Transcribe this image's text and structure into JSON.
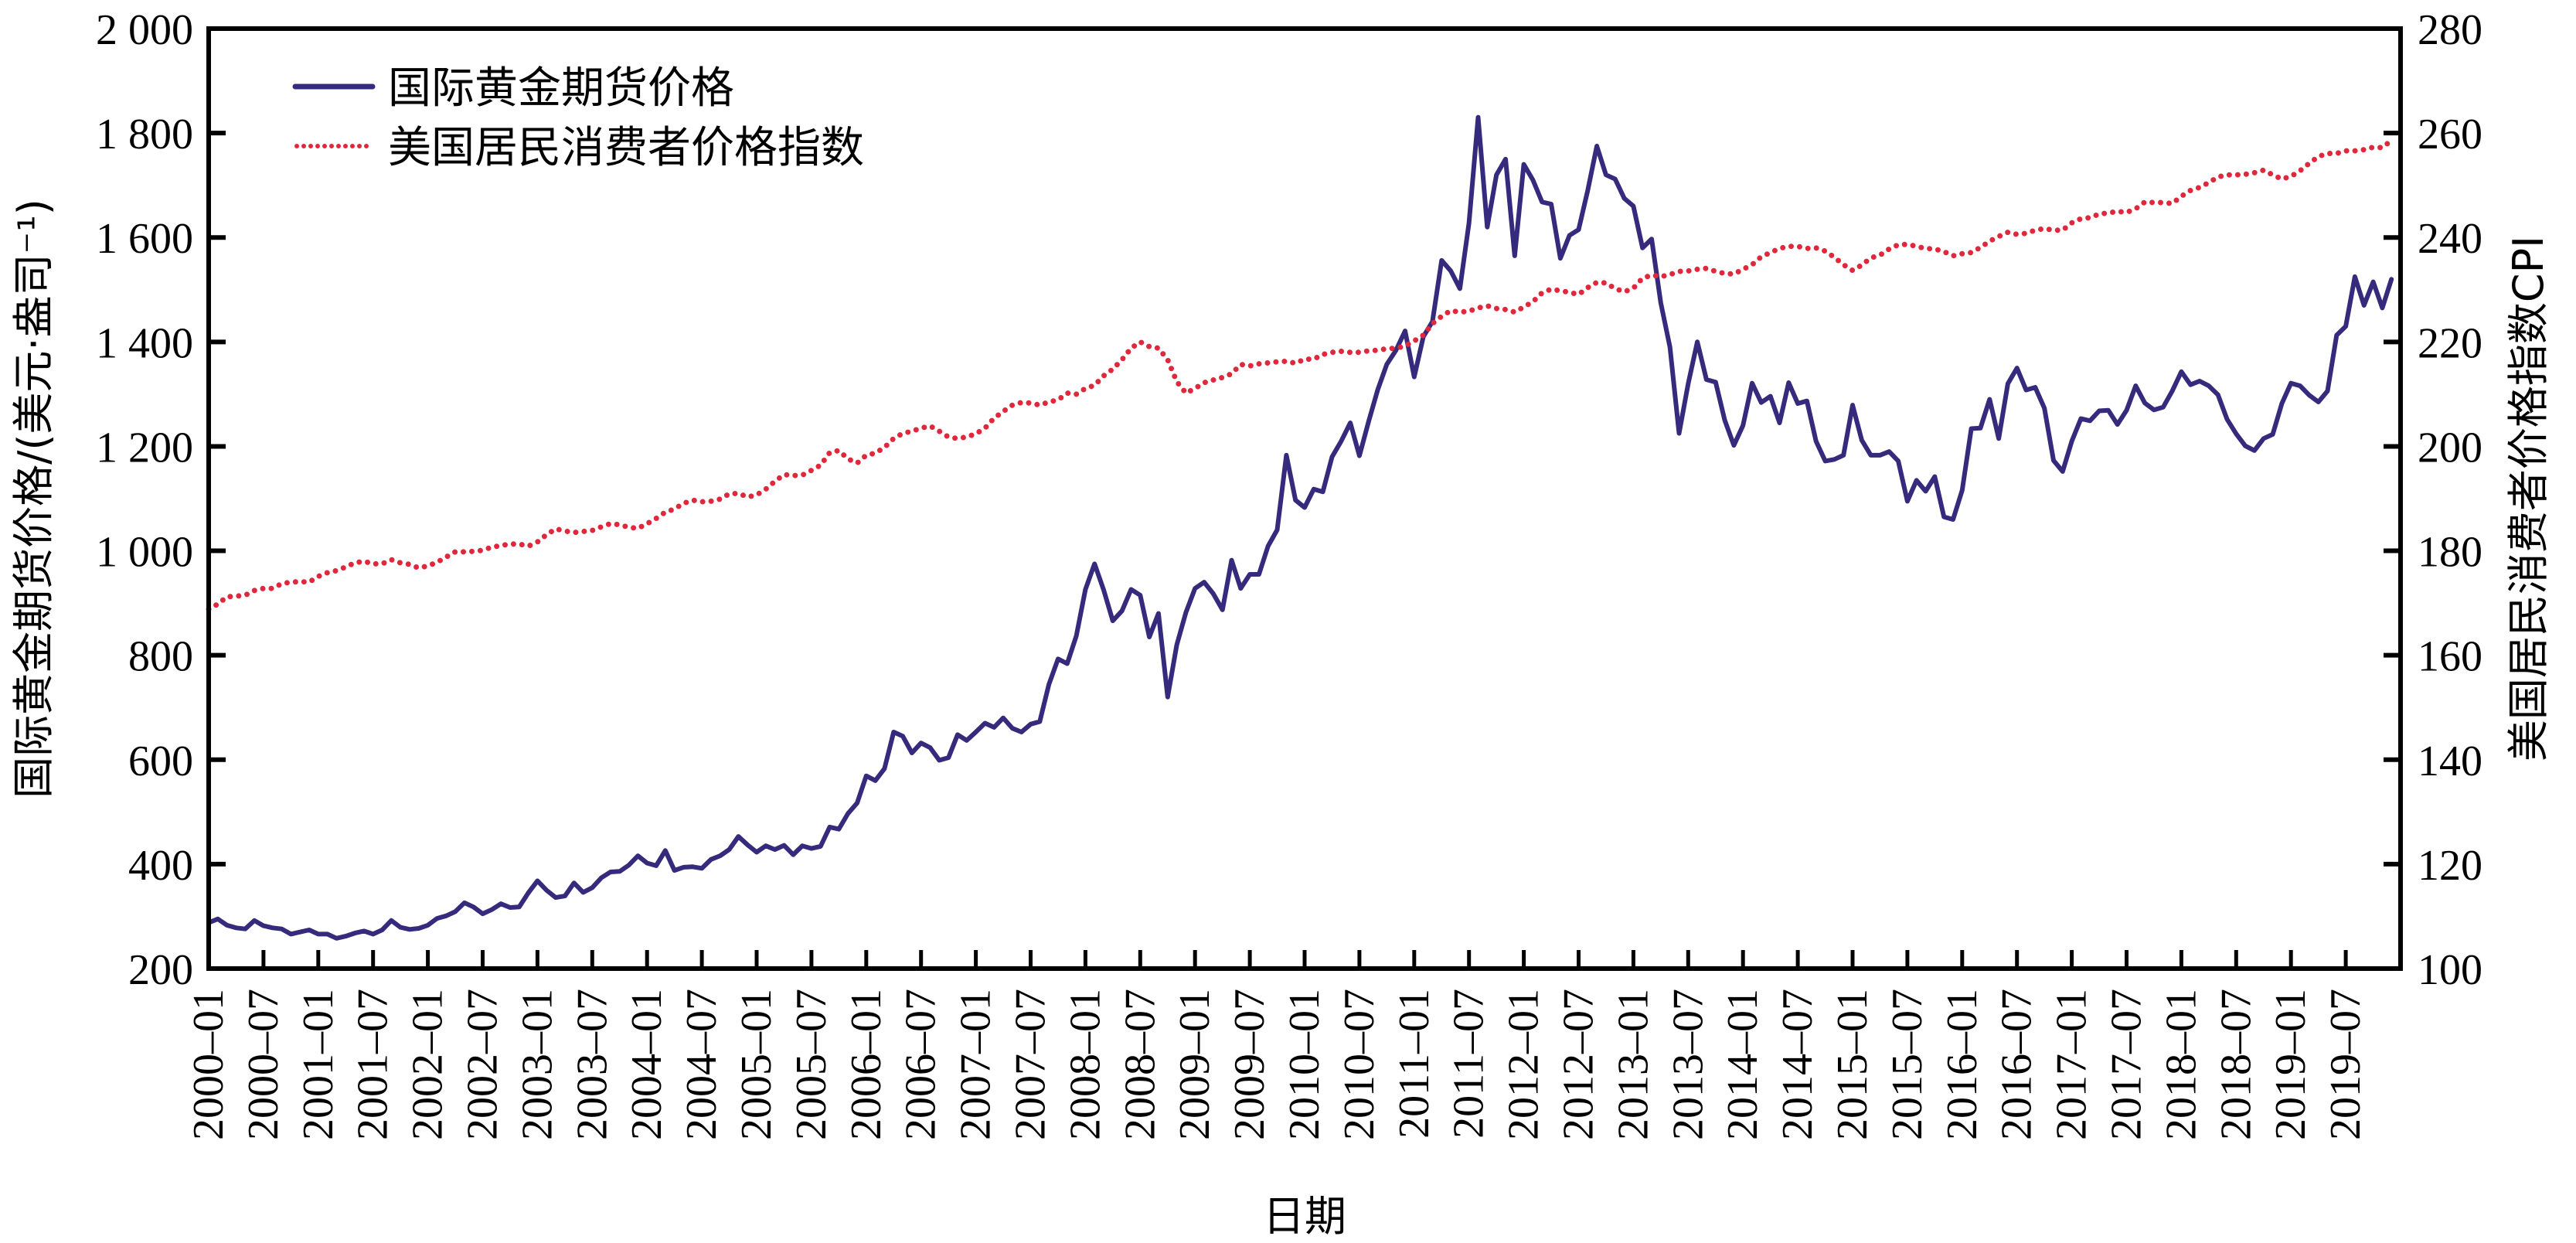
{
  "chart_data": {
    "type": "line",
    "title": "",
    "xlabel": "日期",
    "ylabel": "国际黄金期货价格/(美元·盎司⁻¹)",
    "ylabel_right": "美国居民消费者价格指数CPI",
    "ylim": [
      200,
      2000
    ],
    "ylim_right": [
      100,
      280
    ],
    "yticks": [
      "200",
      "400",
      "600",
      "800",
      "1 000",
      "1 200",
      "1 400",
      "1 600",
      "1 800",
      "2 000"
    ],
    "yticks_right": [
      "100",
      "120",
      "140",
      "160",
      "180",
      "200",
      "220",
      "240",
      "260",
      "280"
    ],
    "x_start": "2000-01",
    "x_range_months": 240,
    "xticks": [
      "2000–01",
      "2000–07",
      "2001–01",
      "2001–07",
      "2002–01",
      "2002–07",
      "2003–01",
      "2003–07",
      "2004–01",
      "2004–07",
      "2005–01",
      "2005–07",
      "2006–01",
      "2006–07",
      "2007–01",
      "2007–07",
      "2008–01",
      "2008–07",
      "2009–01",
      "2009–07",
      "2010–01",
      "2010–07",
      "2011–01",
      "2011–07",
      "2012–01",
      "2012–07",
      "2013–01",
      "2013–07",
      "2014–01",
      "2014–07",
      "2015–01",
      "2015–07",
      "2016–01",
      "2016–07",
      "2017–01",
      "2017–07",
      "2018–01",
      "2018–07",
      "2019–01",
      "2019–07"
    ],
    "grid": false,
    "legend_position": "top-left",
    "colors": {
      "gold": "#352a7c",
      "cpi": "#e0283c"
    },
    "series": [
      {
        "name": "国际黄金期货价格",
        "axis": "left",
        "style": "solid",
        "values": [
          288,
          295,
          283,
          278,
          276,
          292,
          282,
          278,
          276,
          266,
          270,
          274,
          266,
          266,
          258,
          262,
          268,
          272,
          266,
          274,
          292,
          279,
          275,
          277,
          283,
          296,
          301,
          309,
          326,
          318,
          305,
          313,
          324,
          317,
          318,
          345,
          368,
          350,
          336,
          339,
          364,
          346,
          355,
          374,
          385,
          386,
          398,
          416,
          402,
          397,
          426,
          388,
          394,
          395,
          392,
          409,
          416,
          428,
          453,
          437,
          423,
          435,
          428,
          436,
          418,
          435,
          430,
          434,
          471,
          467,
          497,
          517,
          569,
          560,
          583,
          653,
          645,
          613,
          632,
          623,
          599,
          604,
          648,
          637,
          653,
          670,
          662,
          680,
          660,
          653,
          668,
          673,
          744,
          793,
          784,
          837,
          926,
          975,
          925,
          866,
          885,
          926,
          915,
          835,
          880,
          720,
          820,
          882,
          928,
          940,
          918,
          887,
          982,
          928,
          955,
          955,
          1009,
          1040,
          1183,
          1097,
          1083,
          1118,
          1113,
          1180,
          1210,
          1245,
          1182,
          1247,
          1308,
          1357,
          1384,
          1421,
          1333,
          1410,
          1439,
          1556,
          1536,
          1502,
          1628,
          1830,
          1620,
          1720,
          1750,
          1565,
          1740,
          1710,
          1668,
          1664,
          1560,
          1604,
          1615,
          1690,
          1775,
          1720,
          1712,
          1675,
          1660,
          1580,
          1597,
          1475,
          1390,
          1225,
          1320,
          1400,
          1328,
          1323,
          1250,
          1202,
          1240,
          1321,
          1284,
          1296,
          1245,
          1322,
          1282,
          1287,
          1210,
          1172,
          1175,
          1183,
          1279,
          1212,
          1183,
          1183,
          1190,
          1172,
          1095,
          1135,
          1114,
          1142,
          1065,
          1060,
          1116,
          1234,
          1235,
          1290,
          1215,
          1320,
          1350,
          1308,
          1313,
          1273,
          1173,
          1152,
          1210,
          1253,
          1249,
          1268,
          1269,
          1242,
          1269,
          1316,
          1283,
          1270,
          1275,
          1306,
          1343,
          1318,
          1325,
          1316,
          1299,
          1252,
          1224,
          1201,
          1192,
          1215,
          1223,
          1282,
          1321,
          1316,
          1298,
          1285,
          1306,
          1413,
          1430,
          1525,
          1470,
          1515,
          1465,
          1520
        ]
      },
      {
        "name": "美国居民消费者价格指数",
        "axis": "right",
        "style": "dotted",
        "values": [
          168.8,
          169.8,
          171.2,
          171.3,
          171.5,
          172.4,
          172.8,
          172.8,
          173.7,
          174.0,
          174.1,
          174.0,
          175.1,
          175.8,
          176.2,
          176.9,
          177.7,
          178.0,
          177.5,
          177.5,
          178.3,
          177.7,
          177.4,
          176.7,
          177.1,
          177.8,
          178.8,
          179.8,
          179.8,
          179.9,
          180.1,
          180.7,
          181.0,
          181.3,
          181.3,
          180.9,
          181.7,
          183.1,
          184.2,
          183.8,
          183.5,
          183.7,
          183.9,
          184.6,
          185.2,
          185.0,
          184.5,
          184.3,
          185.2,
          186.2,
          187.4,
          188.0,
          189.1,
          189.7,
          189.4,
          189.5,
          189.9,
          190.9,
          191.0,
          190.3,
          190.7,
          191.8,
          193.3,
          194.6,
          194.4,
          194.5,
          195.4,
          196.4,
          198.8,
          199.2,
          197.6,
          196.8,
          198.3,
          198.7,
          199.8,
          201.5,
          202.5,
          202.9,
          203.5,
          203.9,
          202.9,
          201.8,
          201.5,
          201.8,
          202.4,
          203.5,
          205.4,
          206.7,
          207.9,
          208.4,
          208.3,
          207.9,
          208.5,
          208.9,
          210.2,
          210.0,
          211.1,
          211.7,
          213.5,
          214.8,
          216.6,
          218.8,
          220.0,
          219.1,
          218.8,
          216.6,
          212.4,
          210.2,
          211.1,
          212.2,
          212.7,
          213.2,
          213.9,
          215.7,
          215.4,
          215.8,
          216.0,
          216.2,
          216.3,
          215.9,
          216.7,
          216.7,
          217.6,
          218.0,
          218.2,
          218.0,
          218.0,
          218.3,
          218.4,
          218.7,
          218.8,
          219.2,
          220.2,
          221.3,
          223.5,
          224.9,
          226.0,
          225.7,
          225.9,
          226.5,
          226.9,
          226.4,
          226.2,
          225.7,
          226.7,
          227.7,
          229.4,
          230.1,
          229.8,
          229.5,
          229.1,
          230.4,
          231.4,
          231.3,
          230.2,
          229.6,
          230.3,
          232.2,
          232.8,
          232.5,
          232.9,
          233.5,
          233.6,
          233.9,
          234.1,
          233.5,
          233.1,
          233.0,
          233.9,
          234.8,
          236.3,
          237.1,
          237.9,
          238.3,
          238.3,
          237.9,
          238.0,
          237.4,
          236.2,
          234.8,
          233.7,
          234.7,
          236.1,
          236.6,
          237.8,
          238.6,
          238.7,
          238.3,
          237.9,
          237.8,
          237.3,
          236.5,
          236.9,
          237.1,
          238.1,
          239.3,
          240.2,
          241.0,
          240.6,
          240.8,
          241.4,
          241.7,
          241.4,
          241.4,
          242.8,
          243.6,
          243.8,
          244.5,
          244.7,
          245.0,
          244.8,
          245.5,
          246.8,
          246.7,
          246.7,
          246.5,
          247.9,
          249.0,
          249.6,
          250.5,
          251.6,
          252.0,
          252.0,
          252.1,
          252.4,
          252.9,
          252.0,
          251.2,
          251.7,
          252.8,
          254.2,
          255.5,
          256.1,
          256.1,
          256.6,
          256.6,
          256.8,
          257.3,
          257.2,
          258.6
        ]
      }
    ]
  }
}
